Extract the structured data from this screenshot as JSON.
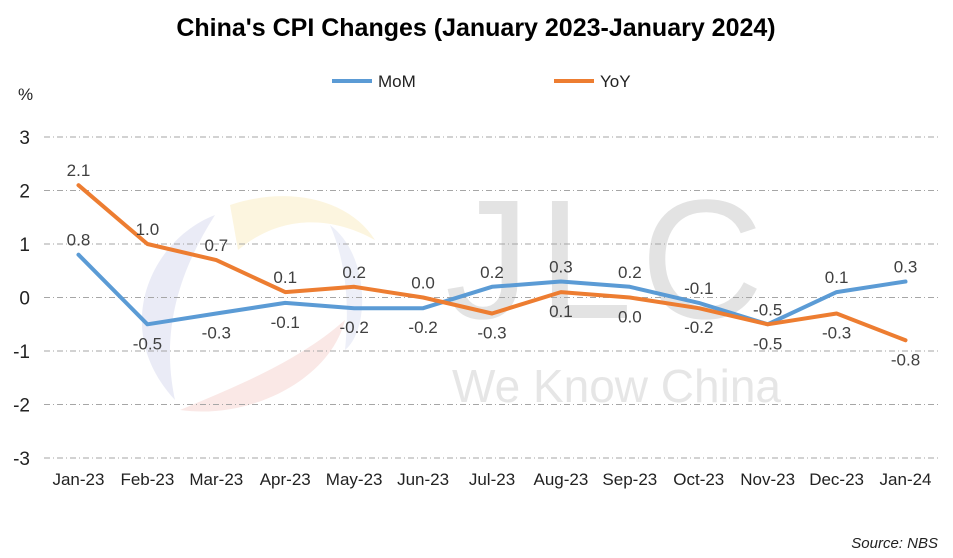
{
  "chart_data": {
    "type": "line",
    "title": "China's CPI Changes (January 2023-January 2024)",
    "ylabel": "%",
    "categories": [
      "Jan-23",
      "Feb-23",
      "Mar-23",
      "Apr-23",
      "May-23",
      "Jun-23",
      "Jul-23",
      "Aug-23",
      "Sep-23",
      "Oct-23",
      "Nov-23",
      "Dec-23",
      "Jan-24"
    ],
    "series": [
      {
        "name": "MoM",
        "color": "#5b9bd5",
        "values": [
          0.8,
          -0.5,
          -0.3,
          -0.1,
          -0.2,
          -0.2,
          0.2,
          0.3,
          0.2,
          -0.1,
          -0.5,
          0.1,
          0.3
        ],
        "labels": [
          "0.8",
          "-0.5",
          "-0.3",
          "-0.1",
          "-0.2",
          "-0.2",
          "0.2",
          "0.3",
          "0.2",
          "-0.1",
          "-0.5",
          "0.1",
          "0.3"
        ]
      },
      {
        "name": "YoY",
        "color": "#ed7d31",
        "values": [
          2.1,
          1.0,
          0.7,
          0.1,
          0.2,
          0.0,
          -0.3,
          0.1,
          0.0,
          -0.2,
          -0.5,
          -0.3,
          -0.8
        ],
        "labels": [
          "2.1",
          "1.0",
          "0.7",
          "0.1",
          "0.2",
          "0.0",
          "-0.3",
          "0.1",
          "0.0",
          "-0.2",
          "-0.5",
          "-0.3",
          "-0.8"
        ]
      }
    ],
    "ylim": [
      -3,
      3
    ],
    "yticks": [
      "3",
      "2",
      "1",
      "0",
      "-1",
      "-2",
      "-3"
    ],
    "grid": true,
    "legend_position": "top",
    "source": "Source: NBS"
  },
  "watermark": {
    "letters": "JLC",
    "slogan": "We Know China"
  }
}
